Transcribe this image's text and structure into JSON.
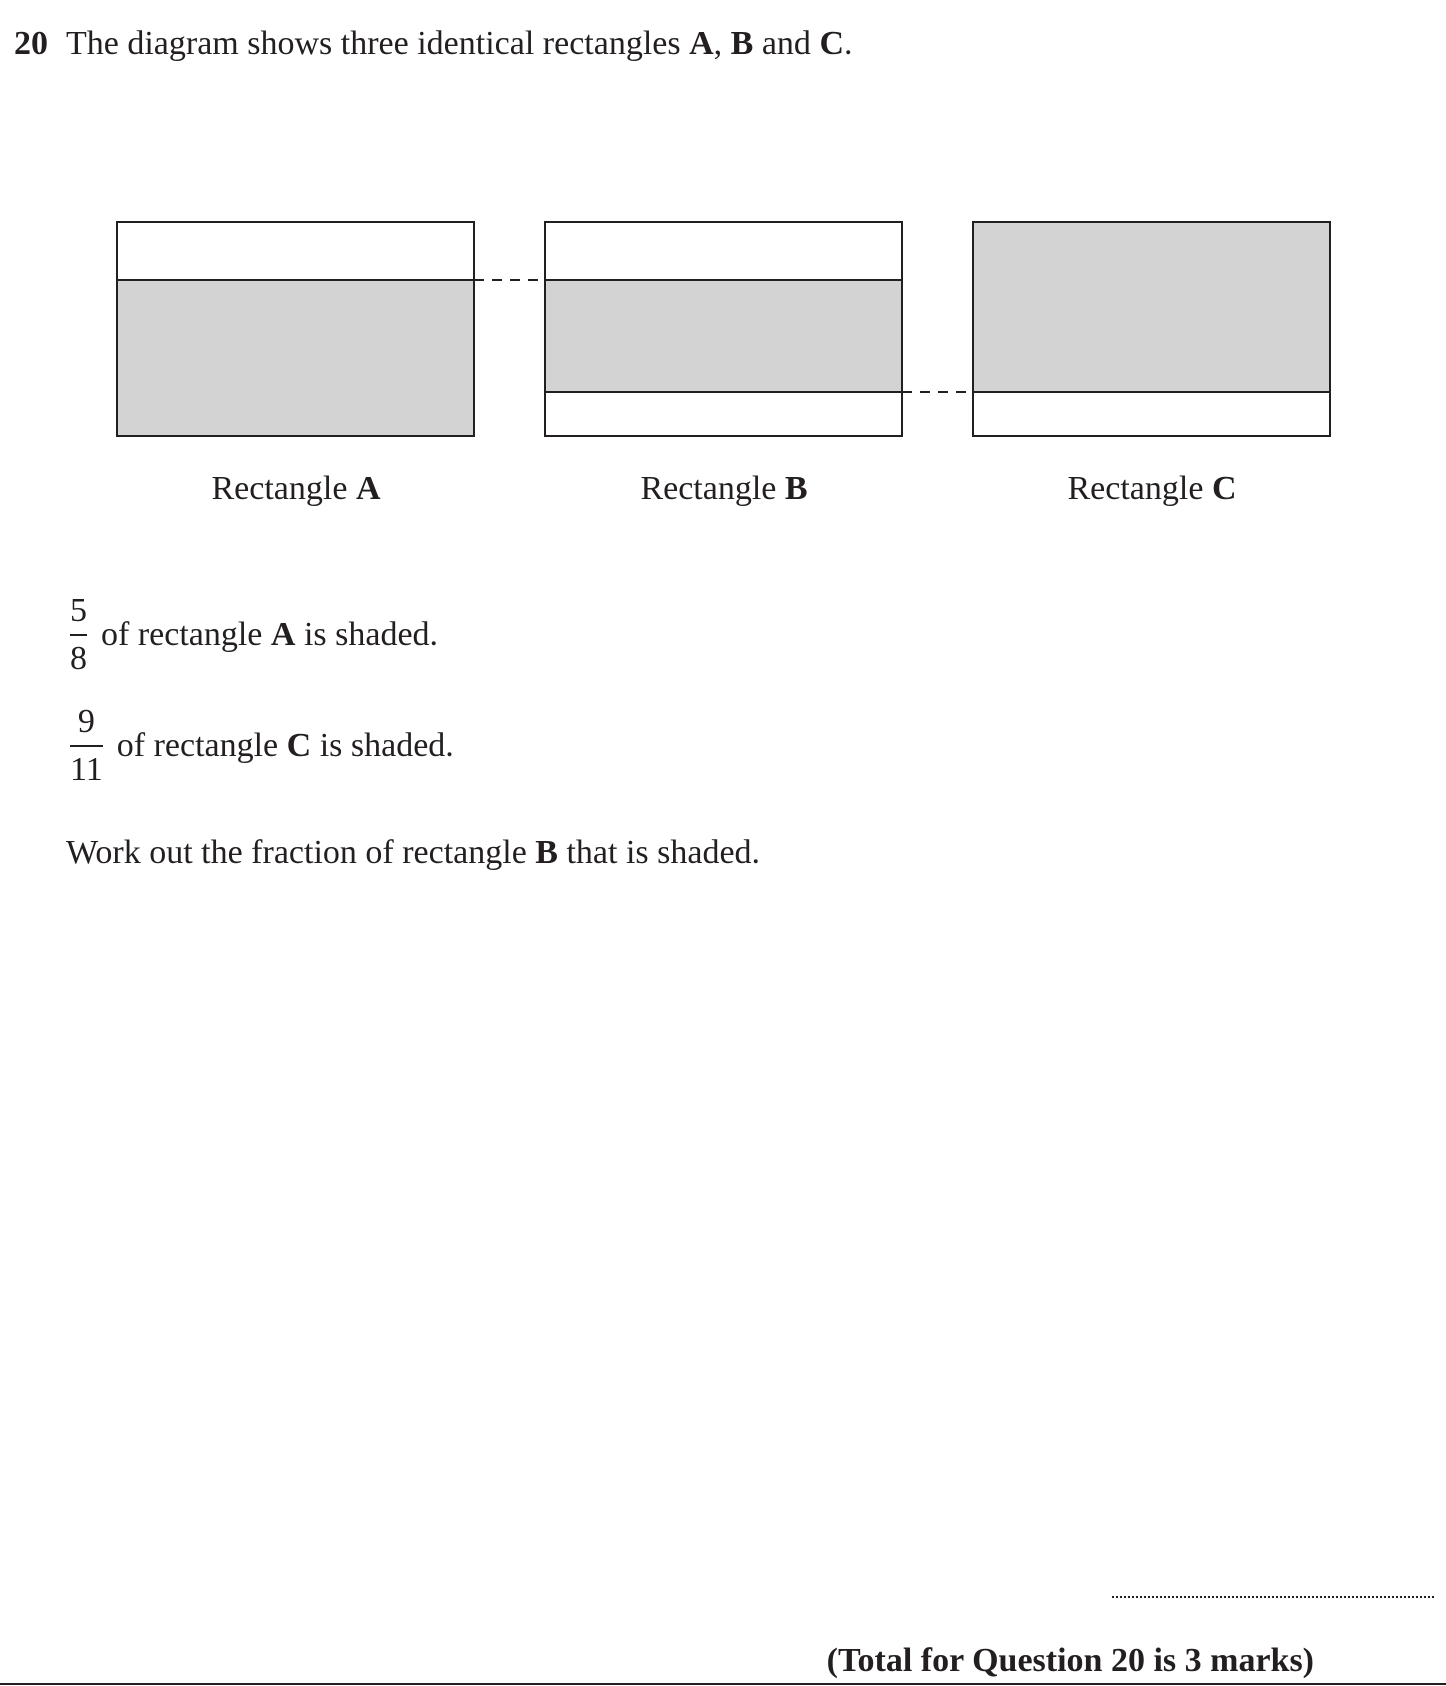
{
  "question": {
    "number": "20",
    "intro_prefix": "The diagram shows three identical rectangles ",
    "letter_a": "A",
    "comma": ", ",
    "letter_b": "B",
    "and_word": " and ",
    "letter_c": "C",
    "period": "."
  },
  "diagram": {
    "label_word": "Rectangle",
    "labels": [
      "A",
      "B",
      "C"
    ],
    "shade_color": "#d3d3d3",
    "line_color": "#231f20",
    "shaded_fractions": {
      "A": "5/8",
      "C": "9/11"
    }
  },
  "statements": [
    {
      "numerator": "5",
      "denominator": "8",
      "prefix": "of rectangle ",
      "letter": "A",
      "suffix": " is shaded."
    },
    {
      "numerator": "9",
      "denominator": "11",
      "prefix": "of rectangle ",
      "letter": "C",
      "suffix": " is shaded."
    }
  ],
  "task": {
    "prefix": "Work out the fraction of rectangle ",
    "letter": "B",
    "suffix": " that is shaded."
  },
  "footer": {
    "total": "(Total for Question 20 is 3 marks)"
  }
}
